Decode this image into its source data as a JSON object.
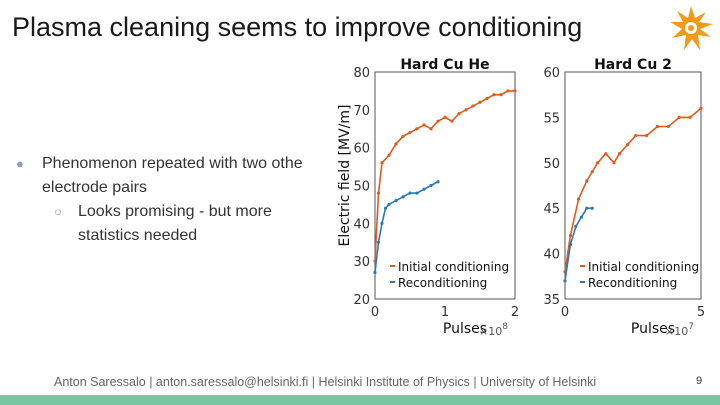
{
  "slide": {
    "title": "Plasma cleaning seems to improve conditioning",
    "bullet_1_a": "Phenomenon repeated with two othe",
    "bullet_1_b": "electrode pairs",
    "bullet_2_a": "Looks promising - but more",
    "bullet_2_b": "statistics needed",
    "footer": "Anton Saressalo | anton.saressalo@helsinki.fi | Helsinki Institute of Physics | University of Helsinki",
    "page_number": "9",
    "logo_icon": "university-of-helsinki-flame-logo",
    "colors": {
      "orange": "#e05a1e",
      "blue": "#2a7ab8",
      "footer_bar": "#78c6a0"
    }
  },
  "chart_data": [
    {
      "type": "line",
      "title": "Hard Cu He",
      "ylabel": "Electric field [MV/m]",
      "xlabel": "Pulses",
      "x_multiplier": "×10^8",
      "xlim": [
        0,
        2
      ],
      "ylim": [
        20,
        80
      ],
      "xticks": [
        "0",
        "1",
        "2"
      ],
      "yticks": [
        "20",
        "30",
        "40",
        "50",
        "60",
        "70",
        "80"
      ],
      "legend": [
        "Initial conditioning",
        "Reconditioning"
      ],
      "legend_position": "bottom-right",
      "series": [
        {
          "name": "Initial conditioning",
          "color": "#e05a1e",
          "x": [
            0.0,
            0.05,
            0.1,
            0.2,
            0.3,
            0.4,
            0.5,
            0.6,
            0.7,
            0.8,
            0.9,
            1.0,
            1.1,
            1.2,
            1.3,
            1.4,
            1.5,
            1.6,
            1.7,
            1.8,
            1.9,
            2.0
          ],
          "y": [
            30,
            48,
            56,
            58,
            61,
            63,
            64,
            65,
            66,
            65,
            67,
            68,
            67,
            69,
            70,
            71,
            72,
            73,
            74,
            74,
            75,
            75
          ]
        },
        {
          "name": "Reconditioning",
          "color": "#2a7ab8",
          "x": [
            0.0,
            0.05,
            0.1,
            0.15,
            0.2,
            0.3,
            0.4,
            0.5,
            0.6,
            0.7,
            0.8,
            0.9
          ],
          "y": [
            27,
            35,
            40,
            44,
            45,
            46,
            47,
            48,
            48,
            49,
            50,
            51
          ]
        }
      ]
    },
    {
      "type": "line",
      "title": "Hard Cu 2",
      "xlabel": "Pulses",
      "x_multiplier": "×10^7",
      "xlim": [
        0,
        5
      ],
      "ylim": [
        35,
        60
      ],
      "xticks": [
        "0",
        "5"
      ],
      "yticks": [
        "35",
        "40",
        "45",
        "50",
        "55",
        "60"
      ],
      "legend": [
        "Initial conditioning",
        "Reconditioning"
      ],
      "legend_position": "bottom-right",
      "series": [
        {
          "name": "Initial conditioning",
          "color": "#e05a1e",
          "x": [
            0.0,
            0.2,
            0.5,
            0.8,
            1.0,
            1.2,
            1.5,
            1.8,
            2.0,
            2.3,
            2.6,
            3.0,
            3.4,
            3.8,
            4.2,
            4.6,
            5.0
          ],
          "y": [
            38,
            42,
            46,
            48,
            49,
            50,
            51,
            50,
            51,
            52,
            53,
            53,
            54,
            54,
            55,
            55,
            56
          ]
        },
        {
          "name": "Reconditioning",
          "color": "#2a7ab8",
          "x": [
            0.0,
            0.2,
            0.4,
            0.6,
            0.8,
            1.0
          ],
          "y": [
            37,
            41,
            43,
            44,
            45,
            45
          ]
        }
      ]
    }
  ]
}
